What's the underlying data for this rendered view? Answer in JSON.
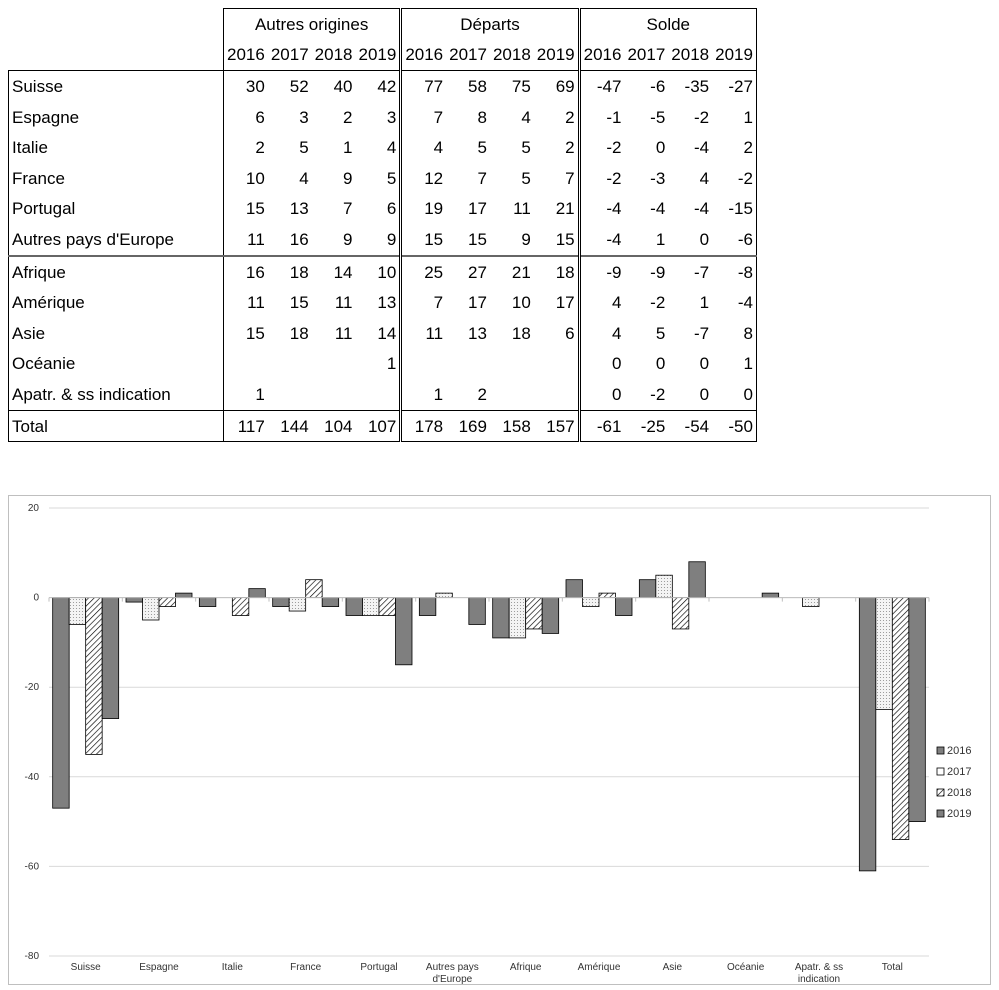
{
  "table": {
    "group_headers": [
      "Autres origines",
      "Départs",
      "Solde"
    ],
    "years": [
      "2016",
      "2017",
      "2018",
      "2019"
    ],
    "rows": [
      {
        "label": "Suisse",
        "autres": [
          "30",
          "52",
          "40",
          "42"
        ],
        "departs": [
          "77",
          "58",
          "75",
          "69"
        ],
        "solde": [
          "-47",
          "-6",
          "-35",
          "-27"
        ]
      },
      {
        "label": "Espagne",
        "autres": [
          "6",
          "3",
          "2",
          "3"
        ],
        "departs": [
          "7",
          "8",
          "4",
          "2"
        ],
        "solde": [
          "-1",
          "-5",
          "-2",
          "1"
        ]
      },
      {
        "label": "Italie",
        "autres": [
          "2",
          "5",
          "1",
          "4"
        ],
        "departs": [
          "4",
          "5",
          "5",
          "2"
        ],
        "solde": [
          "-2",
          "0",
          "-4",
          "2"
        ]
      },
      {
        "label": "France",
        "autres": [
          "10",
          "4",
          "9",
          "5"
        ],
        "departs": [
          "12",
          "7",
          "5",
          "7"
        ],
        "solde": [
          "-2",
          "-3",
          "4",
          "-2"
        ]
      },
      {
        "label": "Portugal",
        "autres": [
          "15",
          "13",
          "7",
          "6"
        ],
        "departs": [
          "19",
          "17",
          "11",
          "21"
        ],
        "solde": [
          "-4",
          "-4",
          "-4",
          "-15"
        ]
      },
      {
        "label": "Autres pays d'Europe",
        "autres": [
          "11",
          "16",
          "9",
          "9"
        ],
        "departs": [
          "15",
          "15",
          "9",
          "15"
        ],
        "solde": [
          "-4",
          "1",
          "0",
          "-6"
        ]
      },
      {
        "label": "Afrique",
        "autres": [
          "16",
          "18",
          "14",
          "10"
        ],
        "departs": [
          "25",
          "27",
          "21",
          "18"
        ],
        "solde": [
          "-9",
          "-9",
          "-7",
          "-8"
        ]
      },
      {
        "label": "Amérique",
        "autres": [
          "11",
          "15",
          "11",
          "13"
        ],
        "departs": [
          "7",
          "17",
          "10",
          "17"
        ],
        "solde": [
          "4",
          "-2",
          "1",
          "-4"
        ]
      },
      {
        "label": "Asie",
        "autres": [
          "15",
          "18",
          "11",
          "14"
        ],
        "departs": [
          "11",
          "13",
          "18",
          "6"
        ],
        "solde": [
          "4",
          "5",
          "-7",
          "8"
        ]
      },
      {
        "label": "Océanie",
        "autres": [
          "",
          "",
          "",
          "1"
        ],
        "departs": [
          "",
          "",
          "",
          ""
        ],
        "solde": [
          "0",
          "0",
          "0",
          "1"
        ]
      },
      {
        "label": "Apatr. & ss indication",
        "autres": [
          "1",
          "",
          "",
          ""
        ],
        "departs": [
          "1",
          "2",
          "",
          ""
        ],
        "solde": [
          "0",
          "-2",
          "0",
          "0"
        ]
      },
      {
        "label": "Total",
        "autres": [
          "117",
          "144",
          "104",
          "107"
        ],
        "departs": [
          "178",
          "169",
          "158",
          "157"
        ],
        "solde": [
          "-61",
          "-25",
          "-54",
          "-50"
        ]
      }
    ]
  },
  "chart_data": {
    "type": "bar",
    "title": "",
    "xlabel": "",
    "ylabel": "",
    "ylim": [
      -80,
      20
    ],
    "yticks": [
      "20",
      "0",
      "-20",
      "-40",
      "-60",
      "-80"
    ],
    "grid": true,
    "legend_position": "right",
    "categories": [
      [
        "Suisse"
      ],
      [
        "Espagne"
      ],
      [
        "Italie"
      ],
      [
        "France"
      ],
      [
        "Portugal"
      ],
      [
        "Autres pays",
        "d'Europe"
      ],
      [
        "Afrique"
      ],
      [
        "Amérique"
      ],
      [
        "Asie"
      ],
      [
        "Océanie"
      ],
      [
        "Apatr. & ss",
        "indication"
      ],
      [
        "Total"
      ]
    ],
    "series": [
      {
        "name": "2016",
        "values": [
          -47,
          -1,
          -2,
          -2,
          -4,
          -4,
          -9,
          4,
          4,
          0,
          0,
          -61
        ]
      },
      {
        "name": "2017",
        "values": [
          -6,
          -5,
          0,
          -3,
          -4,
          1,
          -9,
          -2,
          5,
          0,
          -2,
          -25
        ]
      },
      {
        "name": "2018",
        "values": [
          -35,
          -2,
          -4,
          4,
          -4,
          0,
          -7,
          1,
          -7,
          0,
          0,
          -54
        ]
      },
      {
        "name": "2019",
        "values": [
          -27,
          1,
          2,
          -2,
          -15,
          -6,
          -8,
          -4,
          8,
          1,
          0,
          -50
        ]
      }
    ],
    "series_styles": [
      "solid-dark",
      "dotted-light",
      "hatched",
      "solid-dark"
    ],
    "colors": {
      "dark_fill": "#7f7f7f",
      "light_fill": "#f2f2f2",
      "stroke": "#000000",
      "grid": "#d9d9d9"
    }
  }
}
